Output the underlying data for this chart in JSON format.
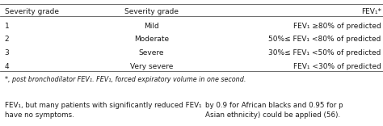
{
  "headers": [
    "Severity grade",
    "Severity grade",
    "FEV₁*"
  ],
  "rows": [
    [
      "1",
      "Mild",
      "FEV₁ ≥80% of predicted"
    ],
    [
      "2",
      "Moderate",
      "50%≤ FEV₁ <80% of predicted"
    ],
    [
      "3",
      "Severe",
      "30%≤ FEV₁ <50% of predicted"
    ],
    [
      "4",
      "Very severe",
      "FEV₁ <30% of predicted"
    ]
  ],
  "footnote": "*, post bronchodilator FEV₁. FEV₁, forced expiratory volume in one second.",
  "bottom_text_left": "FEV₁, but many patients with significantly reduced FEV₁\nhave no symptoms.",
  "bottom_text_right": "by 0.9 for African blacks and 0.95 for p\nAsian ethnicity) could be applied (56).",
  "bg_color": "#ffffff",
  "text_color": "#1a1a1a",
  "figsize": [
    4.74,
    1.56
  ],
  "dpi": 100
}
